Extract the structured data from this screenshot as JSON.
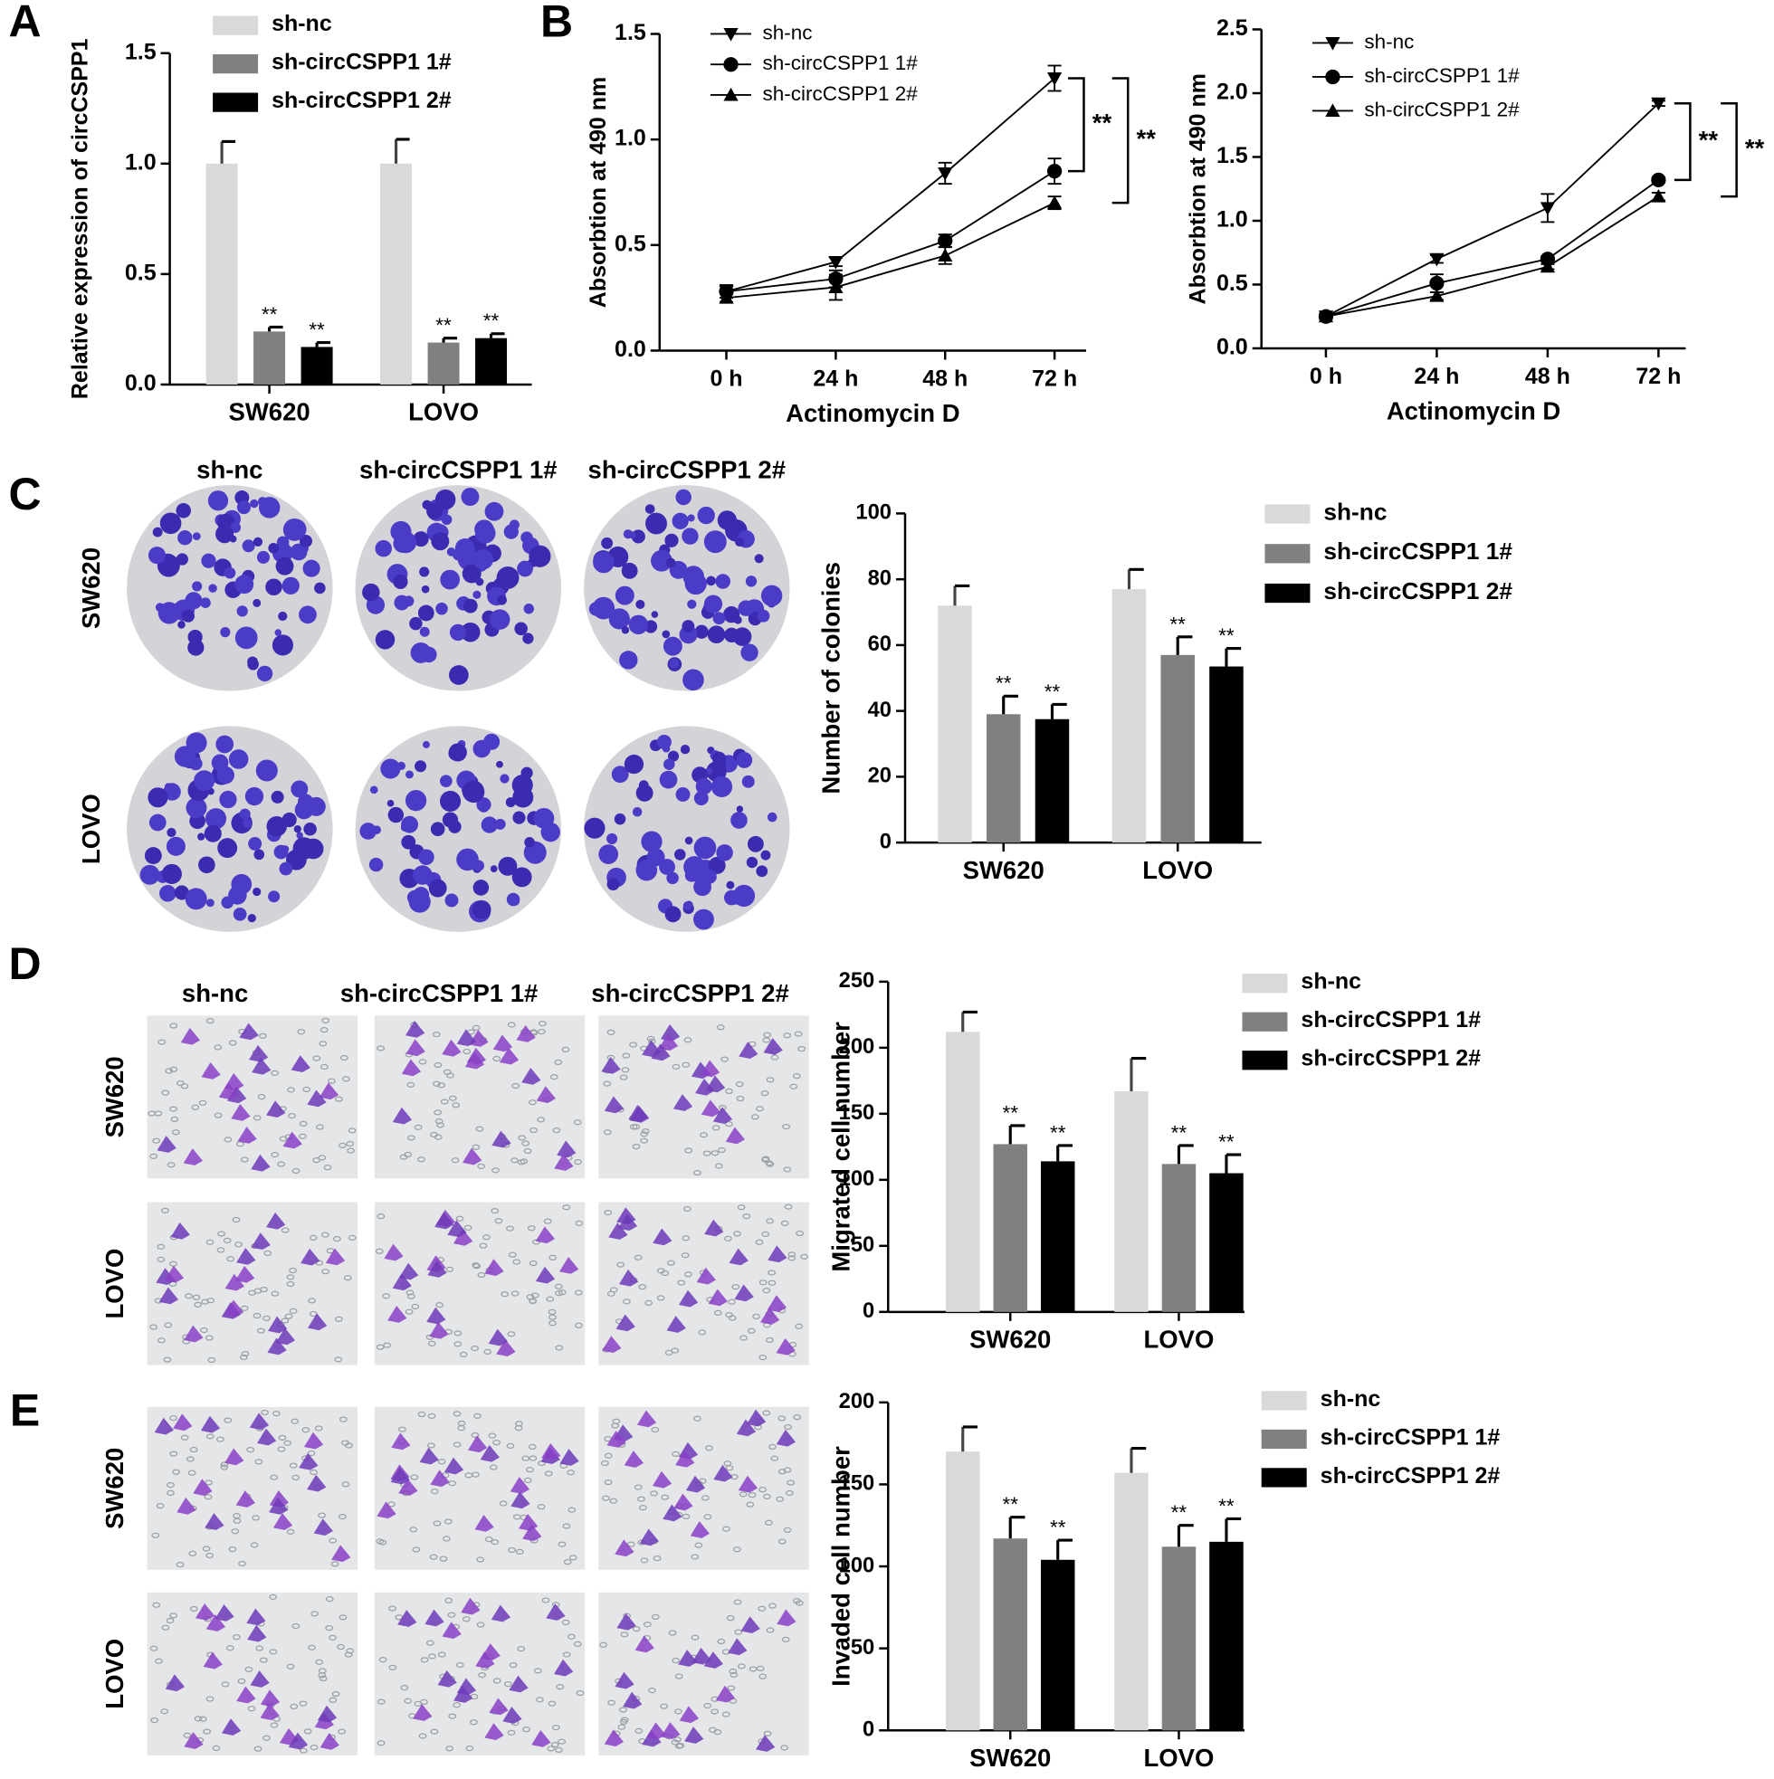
{
  "figure": {
    "panel_labels": [
      "A",
      "B",
      "C",
      "D",
      "E"
    ],
    "image_grids": [
      {
        "columns": [
          "sh-nc",
          "sh-circCSPP1 1#",
          "sh-circCSPP1 2#"
        ],
        "rows": [
          "SW620",
          "LOVO"
        ]
      },
      {
        "columns": [
          "sh-nc",
          "sh-circCSPP1 1#",
          "sh-circCSPP1 2#"
        ],
        "rows": [
          "SW620",
          "LOVO"
        ]
      },
      {
        "rows": [
          "SW620",
          "LOVO"
        ]
      }
    ]
  },
  "chart_data": [
    {
      "type": "bar",
      "ylabel": "Relative expression of circCSPP1",
      "categories": [
        "SW620",
        "LOVO"
      ],
      "ylim": [
        0,
        1.5
      ],
      "yticks": [
        {
          "value": 0,
          "label": "0.0"
        },
        {
          "value": 0.5,
          "label": "0.5"
        },
        {
          "value": 1,
          "label": "1.0"
        },
        {
          "value": 1.5,
          "label": "1.5"
        }
      ],
      "series": [
        {
          "name": "sh-nc",
          "color": "#d9d9d9",
          "values": [
            1.0,
            1.0
          ],
          "errors": [
            0.1,
            0.11
          ]
        },
        {
          "name": "sh-circCSPP1 1#",
          "color": "#808080",
          "values": [
            0.24,
            0.19
          ],
          "errors": [
            0.02,
            0.02
          ],
          "annotations": [
            "**",
            "**"
          ]
        },
        {
          "name": "sh-circCSPP1 2#",
          "color": "#000000",
          "values": [
            0.17,
            0.21
          ],
          "errors": [
            0.02,
            0.02
          ],
          "annotations": [
            "**",
            "**"
          ]
        }
      ]
    },
    {
      "type": "line",
      "xlabel": "Actinomycin D",
      "ylabel": "Absorbtion at 490 nm",
      "categories": [
        "0 h",
        "24 h",
        "48 h",
        "72 h"
      ],
      "ylim": [
        0,
        1.5
      ],
      "yticks": [
        {
          "value": 0,
          "label": "0.0"
        },
        {
          "value": 0.5,
          "label": "0.5"
        },
        {
          "value": 1,
          "label": "1.0"
        },
        {
          "value": 1.5,
          "label": "1.5"
        }
      ],
      "annotations": [
        "**",
        "**"
      ],
      "series": [
        {
          "name": "sh-nc",
          "color": "#000000",
          "marker": "triangle-down",
          "values": [
            0.28,
            0.42,
            0.84,
            1.29
          ],
          "errors": [
            0.03,
            0.02,
            0.05,
            0.06
          ]
        },
        {
          "name": "sh-circCSPP1 1#",
          "color": "#000000",
          "marker": "circle",
          "values": [
            0.28,
            0.34,
            0.52,
            0.85
          ],
          "errors": [
            0.03,
            0.04,
            0.03,
            0.06
          ]
        },
        {
          "name": "sh-circCSPP1 2#",
          "color": "#000000",
          "marker": "triangle-up",
          "values": [
            0.25,
            0.3,
            0.45,
            0.7
          ],
          "errors": [
            0.02,
            0.06,
            0.04,
            0.03
          ]
        }
      ]
    },
    {
      "type": "line",
      "xlabel": "Actinomycin D",
      "ylabel": "Absorbtion at 490 nm",
      "categories": [
        "0 h",
        "24 h",
        "48 h",
        "72 h"
      ],
      "ylim": [
        0,
        2.5
      ],
      "yticks": [
        {
          "value": 0,
          "label": "0.0"
        },
        {
          "value": 0.5,
          "label": "0.5"
        },
        {
          "value": 1,
          "label": "1.0"
        },
        {
          "value": 1.5,
          "label": "1.5"
        },
        {
          "value": 2,
          "label": "2.0"
        },
        {
          "value": 2.5,
          "label": "2.5"
        }
      ],
      "annotations": [
        "**",
        "**"
      ],
      "series": [
        {
          "name": "sh-nc",
          "color": "#000000",
          "marker": "triangle-down",
          "values": [
            0.25,
            0.7,
            1.1,
            1.92
          ],
          "errors": [
            0.02,
            0.03,
            0.11,
            0.02
          ]
        },
        {
          "name": "sh-circCSPP1 1#",
          "color": "#000000",
          "marker": "circle",
          "values": [
            0.25,
            0.51,
            0.7,
            1.32
          ],
          "errors": [
            0.02,
            0.07,
            0.02,
            0.02
          ]
        },
        {
          "name": "sh-circCSPP1 2#",
          "color": "#000000",
          "marker": "triangle-up",
          "values": [
            0.25,
            0.41,
            0.64,
            1.19
          ],
          "errors": [
            0.02,
            0.03,
            0.02,
            0.03
          ]
        }
      ]
    },
    {
      "type": "bar",
      "ylabel": "Number of colonies",
      "categories": [
        "SW620",
        "LOVO"
      ],
      "ylim": [
        0,
        100
      ],
      "yticks": [
        0,
        20,
        40,
        60,
        80,
        100
      ],
      "series": [
        {
          "name": "sh-nc",
          "color": "#d9d9d9",
          "values": [
            72,
            77
          ],
          "errors": [
            6,
            6
          ]
        },
        {
          "name": "sh-circCSPP1 1#",
          "color": "#808080",
          "values": [
            39,
            57
          ],
          "errors": [
            5.5,
            5.5
          ],
          "annotations": [
            "**",
            "**"
          ]
        },
        {
          "name": "sh-circCSPP1 2#",
          "color": "#000000",
          "values": [
            37.5,
            53.5
          ],
          "errors": [
            4.5,
            5.5
          ],
          "annotations": [
            "**",
            "**"
          ]
        }
      ]
    },
    {
      "type": "bar",
      "ylabel": "Migrated cell number",
      "categories": [
        "SW620",
        "LOVO"
      ],
      "ylim": [
        0,
        250
      ],
      "yticks": [
        0,
        50,
        100,
        150,
        200,
        250
      ],
      "series": [
        {
          "name": "sh-nc",
          "color": "#d9d9d9",
          "values": [
            212,
            167
          ],
          "errors": [
            15,
            25
          ]
        },
        {
          "name": "sh-circCSPP1 1#",
          "color": "#808080",
          "values": [
            127,
            112
          ],
          "errors": [
            14,
            14
          ],
          "annotations": [
            "**",
            "**"
          ]
        },
        {
          "name": "sh-circCSPP1 2#",
          "color": "#000000",
          "values": [
            114,
            105
          ],
          "errors": [
            12,
            14
          ],
          "annotations": [
            "**",
            "**"
          ]
        }
      ]
    },
    {
      "type": "bar",
      "ylabel": "Invaded cell number",
      "categories": [
        "SW620",
        "LOVO"
      ],
      "ylim": [
        0,
        200
      ],
      "yticks": [
        0,
        50,
        100,
        150,
        200
      ],
      "series": [
        {
          "name": "sh-nc",
          "color": "#d9d9d9",
          "values": [
            170,
            157
          ],
          "errors": [
            15,
            15
          ]
        },
        {
          "name": "sh-circCSPP1 1#",
          "color": "#808080",
          "values": [
            117,
            112
          ],
          "errors": [
            13,
            13
          ],
          "annotations": [
            "**",
            "**"
          ]
        },
        {
          "name": "sh-circCSPP1 2#",
          "color": "#000000",
          "values": [
            104,
            115
          ],
          "errors": [
            12,
            14
          ],
          "annotations": [
            "**",
            "**"
          ]
        }
      ]
    }
  ]
}
